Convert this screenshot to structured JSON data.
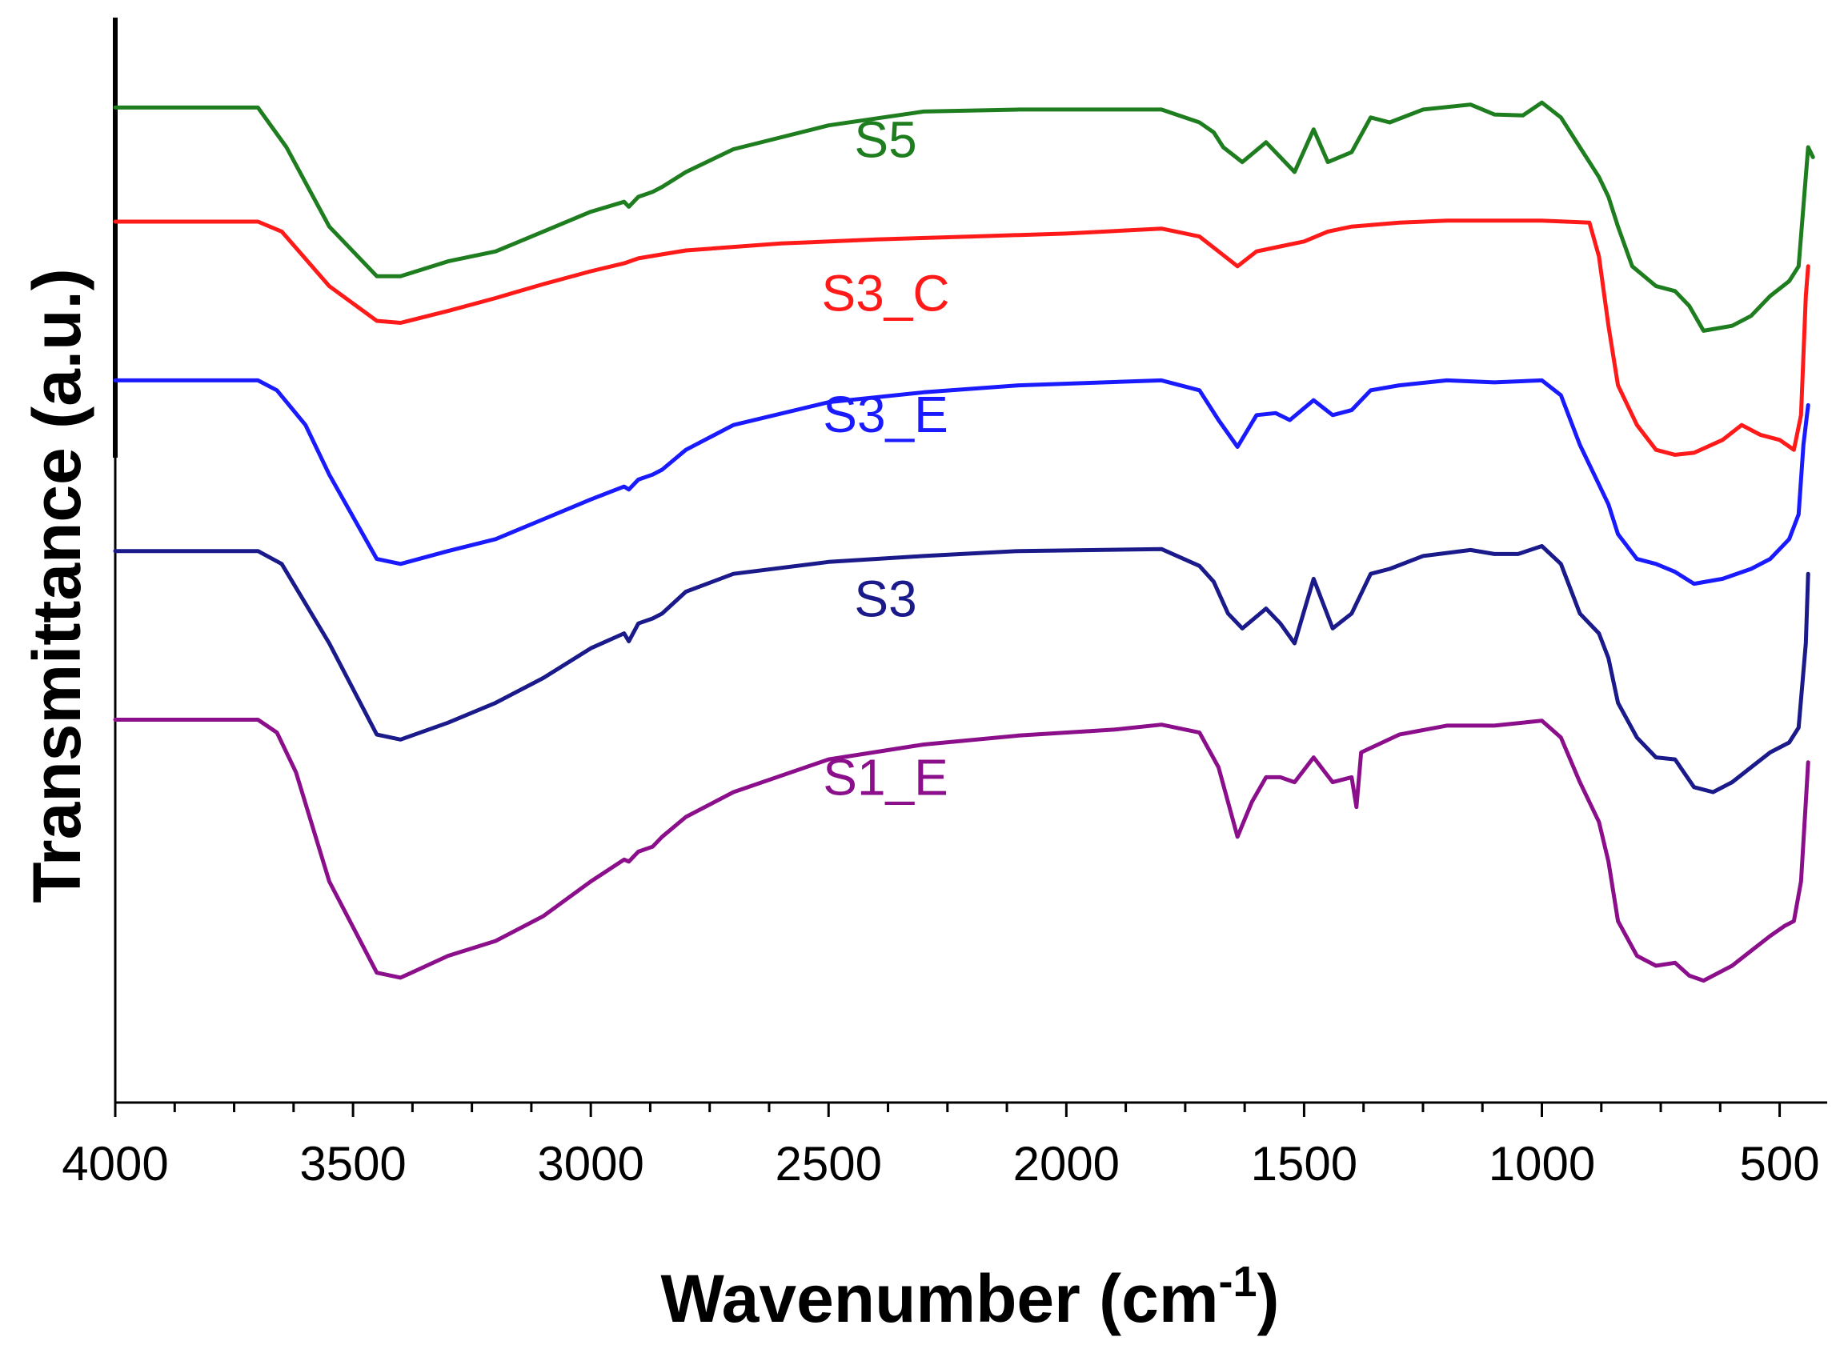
{
  "chart_data": {
    "type": "line",
    "title": "",
    "xlabel": "Wavenumber (cm",
    "xlabel_superscript": "-1",
    "xlabel_suffix": ")",
    "ylabel": "Transmittance (a.u.)",
    "xlim": [
      4000,
      400
    ],
    "x_reversed": true,
    "xticks": [
      4000,
      3500,
      3000,
      2500,
      2000,
      1500,
      1000,
      500
    ],
    "xtick_labels": [
      "4000",
      "3500",
      "3000",
      "2500",
      "2000",
      "1500",
      "1000",
      "500"
    ],
    "yticks": [],
    "ylim": [
      0,
      100
    ],
    "grid": false,
    "legend": "inline labels",
    "series": [
      {
        "name": "S5",
        "color": "#1e7d1e",
        "label_at": [
          2380,
          89
        ],
        "points": [
          [
            4000,
            94
          ],
          [
            3700,
            94
          ],
          [
            3640,
            90
          ],
          [
            3550,
            82
          ],
          [
            3450,
            77
          ],
          [
            3400,
            77
          ],
          [
            3300,
            78.5
          ],
          [
            3200,
            79.5
          ],
          [
            3100,
            81.5
          ],
          [
            3000,
            83.5
          ],
          [
            2930,
            84.5
          ],
          [
            2920,
            84
          ],
          [
            2900,
            85
          ],
          [
            2870,
            85.5
          ],
          [
            2850,
            86
          ],
          [
            2800,
            87.5
          ],
          [
            2700,
            89.8
          ],
          [
            2500,
            92.2
          ],
          [
            2300,
            93.6
          ],
          [
            2100,
            93.8
          ],
          [
            1800,
            93.8
          ],
          [
            1720,
            92.5
          ],
          [
            1690,
            91.5
          ],
          [
            1670,
            90
          ],
          [
            1630,
            88.5
          ],
          [
            1580,
            90.5
          ],
          [
            1550,
            89
          ],
          [
            1520,
            87.5
          ],
          [
            1480,
            91.8
          ],
          [
            1450,
            88.5
          ],
          [
            1400,
            89.5
          ],
          [
            1360,
            93
          ],
          [
            1320,
            92.5
          ],
          [
            1250,
            93.8
          ],
          [
            1150,
            94.3
          ],
          [
            1100,
            93.3
          ],
          [
            1040,
            93.2
          ],
          [
            1000,
            94.5
          ],
          [
            960,
            93
          ],
          [
            920,
            90
          ],
          [
            880,
            87
          ],
          [
            860,
            85
          ],
          [
            840,
            82
          ],
          [
            810,
            78
          ],
          [
            760,
            76
          ],
          [
            720,
            75.5
          ],
          [
            690,
            74
          ],
          [
            660,
            71.5
          ],
          [
            600,
            72
          ],
          [
            560,
            73
          ],
          [
            520,
            75
          ],
          [
            480,
            76.5
          ],
          [
            460,
            78
          ],
          [
            440,
            90
          ],
          [
            430,
            89
          ]
        ]
      },
      {
        "name": "S3_C",
        "color": "#ff1a1a",
        "label_at": [
          2380,
          73.5
        ],
        "points": [
          [
            4000,
            82.5
          ],
          [
            3700,
            82.5
          ],
          [
            3650,
            81.5
          ],
          [
            3550,
            76
          ],
          [
            3450,
            72.5
          ],
          [
            3400,
            72.3
          ],
          [
            3300,
            73.5
          ],
          [
            3200,
            74.8
          ],
          [
            3100,
            76.2
          ],
          [
            3000,
            77.5
          ],
          [
            2930,
            78.3
          ],
          [
            2900,
            78.8
          ],
          [
            2850,
            79.2
          ],
          [
            2800,
            79.6
          ],
          [
            2600,
            80.3
          ],
          [
            2400,
            80.7
          ],
          [
            2200,
            81
          ],
          [
            2000,
            81.3
          ],
          [
            1800,
            81.8
          ],
          [
            1720,
            81
          ],
          [
            1680,
            79.5
          ],
          [
            1640,
            78
          ],
          [
            1600,
            79.5
          ],
          [
            1550,
            80
          ],
          [
            1500,
            80.5
          ],
          [
            1450,
            81.5
          ],
          [
            1400,
            82
          ],
          [
            1300,
            82.4
          ],
          [
            1200,
            82.6
          ],
          [
            1100,
            82.6
          ],
          [
            1000,
            82.6
          ],
          [
            900,
            82.4
          ],
          [
            880,
            79
          ],
          [
            860,
            72
          ],
          [
            840,
            66
          ],
          [
            800,
            62
          ],
          [
            760,
            59.5
          ],
          [
            720,
            59
          ],
          [
            680,
            59.2
          ],
          [
            620,
            60.5
          ],
          [
            580,
            62
          ],
          [
            540,
            61
          ],
          [
            500,
            60.5
          ],
          [
            470,
            59.5
          ],
          [
            455,
            63
          ],
          [
            445,
            75
          ],
          [
            440,
            78
          ]
        ]
      },
      {
        "name": "S3_E",
        "color": "#1a1aff",
        "label_at": [
          2380,
          61.3
        ],
        "points": [
          [
            4000,
            66.5
          ],
          [
            3700,
            66.5
          ],
          [
            3660,
            65.5
          ],
          [
            3600,
            62
          ],
          [
            3550,
            57
          ],
          [
            3450,
            48.5
          ],
          [
            3400,
            48
          ],
          [
            3300,
            49.3
          ],
          [
            3200,
            50.5
          ],
          [
            3100,
            52.5
          ],
          [
            3000,
            54.5
          ],
          [
            2930,
            55.8
          ],
          [
            2920,
            55.5
          ],
          [
            2900,
            56.5
          ],
          [
            2870,
            57
          ],
          [
            2850,
            57.5
          ],
          [
            2800,
            59.5
          ],
          [
            2700,
            62
          ],
          [
            2500,
            64.3
          ],
          [
            2300,
            65.3
          ],
          [
            2100,
            66
          ],
          [
            1800,
            66.5
          ],
          [
            1720,
            65.5
          ],
          [
            1680,
            62.5
          ],
          [
            1640,
            59.8
          ],
          [
            1600,
            63
          ],
          [
            1560,
            63.2
          ],
          [
            1530,
            62.5
          ],
          [
            1480,
            64.5
          ],
          [
            1440,
            63
          ],
          [
            1400,
            63.5
          ],
          [
            1360,
            65.5
          ],
          [
            1300,
            66
          ],
          [
            1200,
            66.5
          ],
          [
            1100,
            66.3
          ],
          [
            1000,
            66.5
          ],
          [
            960,
            65
          ],
          [
            920,
            60
          ],
          [
            880,
            56
          ],
          [
            860,
            54
          ],
          [
            840,
            51
          ],
          [
            800,
            48.5
          ],
          [
            760,
            48
          ],
          [
            720,
            47.2
          ],
          [
            680,
            46
          ],
          [
            620,
            46.5
          ],
          [
            560,
            47.5
          ],
          [
            520,
            48.5
          ],
          [
            480,
            50.5
          ],
          [
            460,
            53
          ],
          [
            450,
            60
          ],
          [
            440,
            64
          ]
        ]
      },
      {
        "name": "S3",
        "color": "#1a1a8a",
        "label_at": [
          2380,
          42.7
        ],
        "points": [
          [
            4000,
            49.3
          ],
          [
            3700,
            49.3
          ],
          [
            3650,
            48
          ],
          [
            3550,
            40
          ],
          [
            3450,
            30.8
          ],
          [
            3400,
            30.3
          ],
          [
            3300,
            32
          ],
          [
            3200,
            34
          ],
          [
            3100,
            36.5
          ],
          [
            3000,
            39.5
          ],
          [
            2930,
            41
          ],
          [
            2920,
            40.2
          ],
          [
            2900,
            42
          ],
          [
            2870,
            42.5
          ],
          [
            2850,
            43
          ],
          [
            2800,
            45.2
          ],
          [
            2700,
            47
          ],
          [
            2500,
            48.2
          ],
          [
            2300,
            48.8
          ],
          [
            2100,
            49.3
          ],
          [
            1800,
            49.5
          ],
          [
            1720,
            47.8
          ],
          [
            1690,
            46.2
          ],
          [
            1660,
            43
          ],
          [
            1630,
            41.5
          ],
          [
            1580,
            43.5
          ],
          [
            1550,
            42
          ],
          [
            1520,
            40
          ],
          [
            1480,
            46.5
          ],
          [
            1440,
            41.5
          ],
          [
            1400,
            43
          ],
          [
            1360,
            47
          ],
          [
            1320,
            47.5
          ],
          [
            1250,
            48.8
          ],
          [
            1150,
            49.4
          ],
          [
            1100,
            49
          ],
          [
            1050,
            49
          ],
          [
            1000,
            49.8
          ],
          [
            960,
            48
          ],
          [
            920,
            43
          ],
          [
            880,
            41
          ],
          [
            860,
            38.5
          ],
          [
            840,
            34
          ],
          [
            800,
            30.5
          ],
          [
            760,
            28.5
          ],
          [
            720,
            28.3
          ],
          [
            680,
            25.5
          ],
          [
            640,
            25
          ],
          [
            600,
            26
          ],
          [
            560,
            27.5
          ],
          [
            520,
            29
          ],
          [
            480,
            30
          ],
          [
            460,
            31.5
          ],
          [
            445,
            40
          ],
          [
            440,
            47
          ]
        ]
      },
      {
        "name": "S1_E",
        "color": "#8b0f8b",
        "label_at": [
          2380,
          24.7
        ],
        "points": [
          [
            4000,
            32.3
          ],
          [
            3700,
            32.3
          ],
          [
            3660,
            31
          ],
          [
            3620,
            27
          ],
          [
            3550,
            16
          ],
          [
            3450,
            6.8
          ],
          [
            3400,
            6.3
          ],
          [
            3300,
            8.5
          ],
          [
            3200,
            10
          ],
          [
            3100,
            12.5
          ],
          [
            3000,
            16
          ],
          [
            2930,
            18.2
          ],
          [
            2920,
            18
          ],
          [
            2900,
            19
          ],
          [
            2870,
            19.5
          ],
          [
            2850,
            20.5
          ],
          [
            2800,
            22.5
          ],
          [
            2700,
            25
          ],
          [
            2500,
            28.3
          ],
          [
            2300,
            29.8
          ],
          [
            2100,
            30.7
          ],
          [
            1900,
            31.3
          ],
          [
            1800,
            31.8
          ],
          [
            1720,
            31
          ],
          [
            1680,
            27.5
          ],
          [
            1640,
            20.5
          ],
          [
            1610,
            24
          ],
          [
            1580,
            26.5
          ],
          [
            1550,
            26.5
          ],
          [
            1520,
            26
          ],
          [
            1480,
            28.5
          ],
          [
            1440,
            26
          ],
          [
            1400,
            26.5
          ],
          [
            1390,
            23.5
          ],
          [
            1380,
            29
          ],
          [
            1300,
            30.8
          ],
          [
            1200,
            31.7
          ],
          [
            1100,
            31.7
          ],
          [
            1000,
            32.2
          ],
          [
            960,
            30.5
          ],
          [
            920,
            26
          ],
          [
            880,
            22
          ],
          [
            860,
            18
          ],
          [
            840,
            12
          ],
          [
            800,
            8.5
          ],
          [
            760,
            7.5
          ],
          [
            720,
            7.8
          ],
          [
            690,
            6.5
          ],
          [
            660,
            6
          ],
          [
            600,
            7.5
          ],
          [
            560,
            9
          ],
          [
            520,
            10.5
          ],
          [
            490,
            11.5
          ],
          [
            470,
            12
          ],
          [
            455,
            16
          ],
          [
            445,
            24
          ],
          [
            440,
            28
          ]
        ]
      }
    ]
  }
}
